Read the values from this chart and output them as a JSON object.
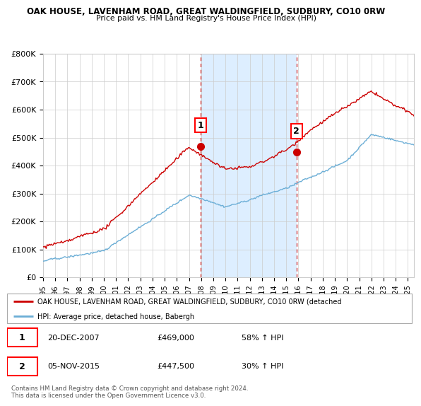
{
  "title1": "OAK HOUSE, LAVENHAM ROAD, GREAT WALDINGFIELD, SUDBURY, CO10 0RW",
  "title2": "Price paid vs. HM Land Registry's House Price Index (HPI)",
  "legend_line1": "OAK HOUSE, LAVENHAM ROAD, GREAT WALDINGFIELD, SUDBURY, CO10 0RW (detached",
  "legend_line2": "HPI: Average price, detached house, Babergh",
  "marker1_label": "1",
  "marker1_date": "20-DEC-2007",
  "marker1_price": "£469,000",
  "marker1_hpi": "58% ↑ HPI",
  "marker2_label": "2",
  "marker2_date": "05-NOV-2015",
  "marker2_price": "£447,500",
  "marker2_hpi": "30% ↑ HPI",
  "footer": "Contains HM Land Registry data © Crown copyright and database right 2024.\nThis data is licensed under the Open Government Licence v3.0.",
  "hpi_color": "#6baed6",
  "price_color": "#cc0000",
  "shade_color": "#ddeeff",
  "marker_vline_color": "#cc0000",
  "ylim": [
    0,
    800000
  ],
  "yticks": [
    0,
    100000,
    200000,
    300000,
    400000,
    500000,
    600000,
    700000,
    800000
  ],
  "ytick_labels": [
    "£0",
    "£100K",
    "£200K",
    "£300K",
    "£400K",
    "£500K",
    "£600K",
    "£700K",
    "£800K"
  ],
  "year_start": 1995,
  "year_end": 2025,
  "sale1_t": 2007.96,
  "sale1_price": 469000,
  "sale2_t": 2015.84,
  "sale2_price": 447500
}
